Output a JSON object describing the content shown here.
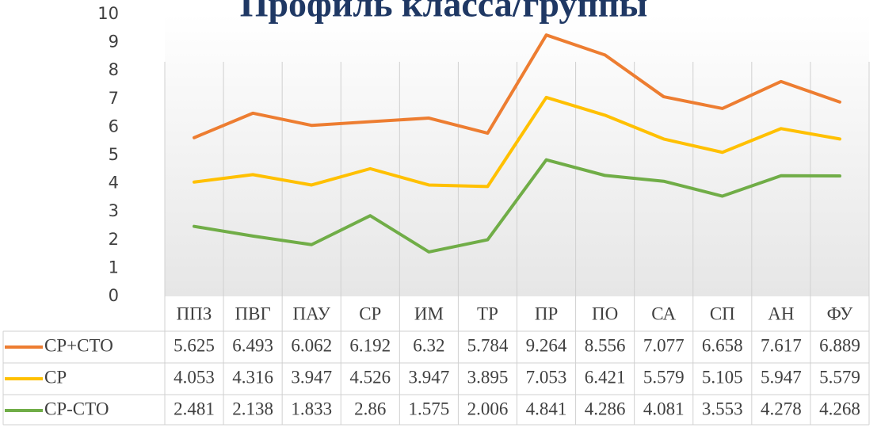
{
  "chart_data": {
    "type": "line",
    "title": "Профиль класса/группы",
    "categories": [
      "ППЗ",
      "ПВГ",
      "ПАУ",
      "СР",
      "ИМ",
      "ТР",
      "ПР",
      "ПО",
      "СА",
      "СП",
      "АН",
      "ФУ"
    ],
    "series": [
      {
        "name": "СР+СТО",
        "color": "#ed7d31",
        "values": [
          5.625,
          6.493,
          6.062,
          6.192,
          6.32,
          5.784,
          9.264,
          8.556,
          7.077,
          6.658,
          7.617,
          6.889
        ]
      },
      {
        "name": "СР",
        "color": "#ffc000",
        "values": [
          4.053,
          4.316,
          3.947,
          4.526,
          3.947,
          3.895,
          7.053,
          6.421,
          5.579,
          5.105,
          5.947,
          5.579
        ]
      },
      {
        "name": "СР-СТО",
        "color": "#70ad47",
        "values": [
          2.481,
          2.138,
          1.833,
          2.86,
          1.575,
          2.006,
          4.841,
          4.286,
          4.081,
          3.553,
          4.278,
          4.268
        ]
      }
    ],
    "ylim": [
      0,
      10
    ],
    "yticks": [
      0,
      1,
      2,
      3,
      4,
      5,
      6,
      7,
      8,
      9,
      10
    ],
    "data_table": true
  }
}
